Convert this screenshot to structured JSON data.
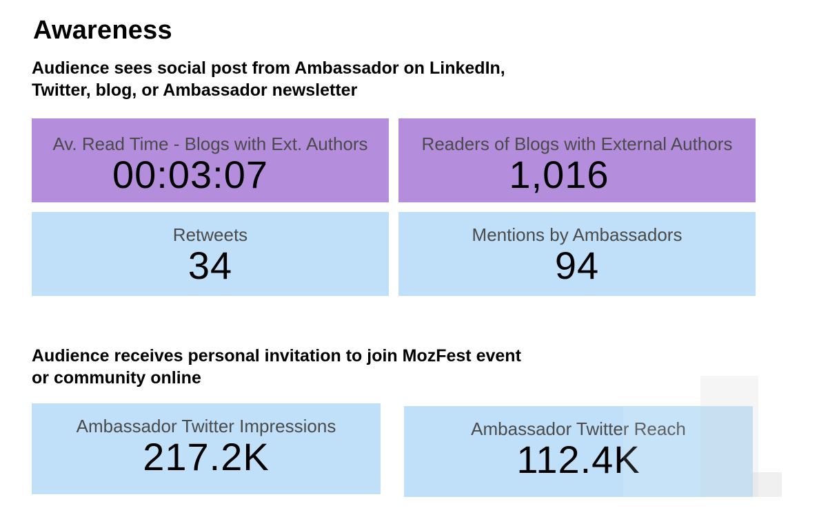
{
  "page": {
    "title": "Awareness"
  },
  "sections": [
    {
      "heading": "Audience sees social post from Ambassador on LinkedIn,\nTwitter, blog, or Ambassador newsletter",
      "cards": [
        {
          "label": "Av. Read Time - Blogs with Ext. Authors",
          "value": "00:03:07",
          "color": "#b48ddd"
        },
        {
          "label": "Readers of Blogs with External Authors",
          "value": "1,016",
          "color": "#b48ddd"
        },
        {
          "label": "Retweets",
          "value": "34",
          "color": "#bfe0f8"
        },
        {
          "label": "Mentions by Ambassadors",
          "value": "94",
          "color": "#bfe0f8"
        }
      ]
    },
    {
      "heading": "Audience receives personal invitation to join MozFest event\nor community online",
      "cards": [
        {
          "label": "Ambassador Twitter Impressions",
          "value": "217.2K",
          "color": "#bfe0f8"
        },
        {
          "label": "Ambassador Twitter Reach",
          "value": "112.4K",
          "color": "#bfe0f8"
        }
      ]
    }
  ]
}
